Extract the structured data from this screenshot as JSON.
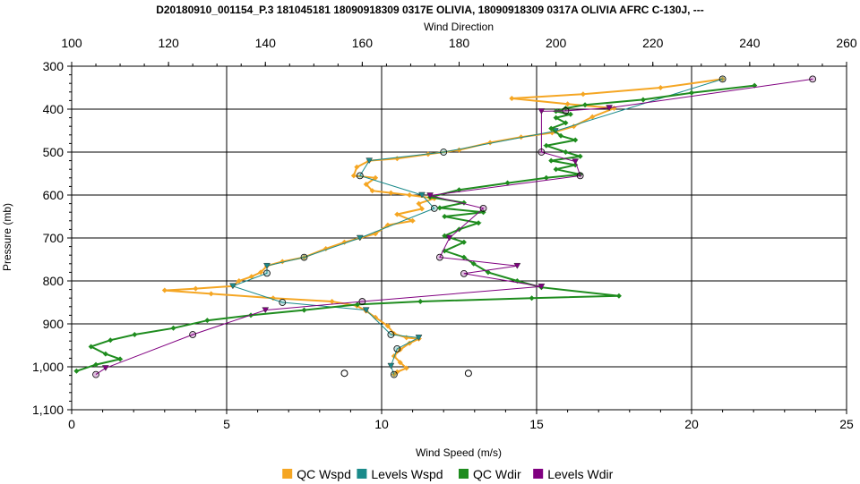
{
  "chart_data": {
    "type": "line",
    "title": "D20180910_001154_P.3 181045181 18090918309 0317E OLIVIA, 18090918309 0317A OLIVIA AFRC C-130J, ---",
    "xlabel": "Wind Speed (m/s)",
    "x2label": "Wind Direction",
    "ylabel": "Pressure (mb)",
    "xlim": [
      0,
      25
    ],
    "x2lim": [
      100,
      260
    ],
    "ylim": [
      1100,
      300
    ],
    "y_inverted": true,
    "grid": true,
    "legend_position": "bottom",
    "x_ticks": [
      "0",
      "5",
      "10",
      "15",
      "20",
      "25"
    ],
    "x2_ticks": [
      "100",
      "120",
      "140",
      "160",
      "180",
      "200",
      "220",
      "240",
      "260"
    ],
    "y_ticks": [
      "300",
      "400",
      "500",
      "600",
      "700",
      "800",
      "900",
      "1,000",
      "1,100"
    ],
    "series": [
      {
        "name": "QC Wspd",
        "axis": "bottom",
        "color": "#f5a623",
        "marker": "diamond",
        "points": [
          [
            21,
            330
          ],
          [
            19,
            350
          ],
          [
            16.5,
            365
          ],
          [
            14.2,
            375
          ],
          [
            16,
            388
          ],
          [
            17.5,
            398
          ],
          [
            16.8,
            418
          ],
          [
            16.2,
            440
          ],
          [
            15.5,
            455
          ],
          [
            14.5,
            465
          ],
          [
            13.5,
            478
          ],
          [
            12.5,
            495
          ],
          [
            11.5,
            505
          ],
          [
            10.5,
            515
          ],
          [
            9.6,
            520
          ],
          [
            9.2,
            535
          ],
          [
            9.1,
            555
          ],
          [
            9.8,
            560
          ],
          [
            9.5,
            575
          ],
          [
            9.7,
            590
          ],
          [
            10.3,
            595
          ],
          [
            10.9,
            600
          ],
          [
            11.7,
            608
          ],
          [
            11.2,
            620
          ],
          [
            11.3,
            632
          ],
          [
            10.5,
            645
          ],
          [
            11,
            660
          ],
          [
            10.2,
            670
          ],
          [
            9.8,
            690
          ],
          [
            9.3,
            700
          ],
          [
            8.8,
            710
          ],
          [
            8.2,
            725
          ],
          [
            7.5,
            745
          ],
          [
            6.8,
            755
          ],
          [
            6.3,
            765
          ],
          [
            6.1,
            780
          ],
          [
            5.8,
            790
          ],
          [
            5.4,
            800
          ],
          [
            5.2,
            812
          ],
          [
            4,
            818
          ],
          [
            3,
            822
          ],
          [
            4.5,
            830
          ],
          [
            6.5,
            840
          ],
          [
            8.4,
            848
          ],
          [
            9.2,
            858
          ],
          [
            9.5,
            870
          ],
          [
            9.8,
            885
          ],
          [
            10.2,
            905
          ],
          [
            10.4,
            923
          ],
          [
            10.8,
            932
          ],
          [
            11.2,
            935
          ],
          [
            10.9,
            945
          ],
          [
            10.6,
            960
          ],
          [
            10.4,
            975
          ],
          [
            10.6,
            990
          ],
          [
            10.8,
            1003
          ],
          [
            10.5,
            1012
          ],
          [
            10.4,
            1018
          ]
        ]
      },
      {
        "name": "Levels Wspd",
        "axis": "bottom",
        "color": "#1a8a8a",
        "points": [
          [
            21,
            330
          ],
          [
            15.6,
            451
          ],
          [
            12,
            500
          ],
          [
            9.6,
            520
          ],
          [
            9.3,
            555
          ],
          [
            11.3,
            600
          ],
          [
            11.7,
            631
          ],
          [
            9.3,
            700
          ],
          [
            7.5,
            745
          ],
          [
            6.3,
            765
          ],
          [
            6.3,
            782
          ],
          [
            5.2,
            812
          ],
          [
            6.8,
            850
          ],
          [
            9.5,
            868
          ],
          [
            10.3,
            925
          ],
          [
            11.2,
            932
          ],
          [
            10.5,
            958
          ],
          [
            10.3,
            998
          ],
          [
            10.4,
            1018
          ]
        ]
      },
      {
        "name": "QC Wdir",
        "axis": "top",
        "color": "#1e8c1e",
        "marker": "diamond",
        "points": [
          [
            241,
            345
          ],
          [
            228,
            362
          ],
          [
            218,
            378
          ],
          [
            206,
            390
          ],
          [
            202,
            398
          ],
          [
            200,
            405
          ],
          [
            203,
            412
          ],
          [
            200,
            420
          ],
          [
            202,
            432
          ],
          [
            199,
            445
          ],
          [
            201,
            462
          ],
          [
            204,
            472
          ],
          [
            198,
            485
          ],
          [
            202,
            500
          ],
          [
            205,
            510
          ],
          [
            199,
            520
          ],
          [
            204,
            530
          ],
          [
            200,
            540
          ],
          [
            205,
            552
          ],
          [
            198,
            560
          ],
          [
            190,
            572
          ],
          [
            180,
            588
          ],
          [
            174,
            605
          ],
          [
            181,
            618
          ],
          [
            176,
            630
          ],
          [
            185,
            640
          ],
          [
            177,
            650
          ],
          [
            184,
            665
          ],
          [
            180,
            680
          ],
          [
            177,
            695
          ],
          [
            181,
            710
          ],
          [
            177,
            730
          ],
          [
            181,
            745
          ],
          [
            183,
            760
          ],
          [
            186,
            780
          ],
          [
            192,
            800
          ],
          [
            197,
            815
          ],
          [
            213,
            835
          ],
          [
            195,
            840
          ],
          [
            172,
            848
          ],
          [
            159,
            855
          ],
          [
            148,
            868
          ],
          [
            137,
            880
          ],
          [
            128,
            892
          ],
          [
            121,
            910
          ],
          [
            113,
            925
          ],
          [
            108,
            938
          ],
          [
            104,
            953
          ],
          [
            107,
            970
          ],
          [
            110,
            982
          ],
          [
            105,
            995
          ],
          [
            101,
            1010
          ]
        ]
      },
      {
        "name": "Levels Wdir",
        "axis": "top",
        "color": "#800080",
        "points": [
          [
            253,
            330
          ],
          [
            211,
            397
          ],
          [
            202,
            404
          ],
          [
            197,
            405
          ],
          [
            197,
            500
          ],
          [
            204,
            522
          ],
          [
            205,
            555
          ],
          [
            174,
            601
          ],
          [
            185,
            631
          ],
          [
            178,
            700
          ],
          [
            176,
            745
          ],
          [
            192,
            765
          ],
          [
            181,
            783
          ],
          [
            197,
            813
          ],
          [
            160,
            848
          ],
          [
            140,
            868
          ],
          [
            125,
            925
          ],
          [
            107,
            1003
          ],
          [
            105,
            1018
          ]
        ]
      },
      {
        "name": "",
        "axis": "bottom",
        "color": "#000000",
        "marker": "circle",
        "points": [
          [
            8.8,
            1015
          ],
          [
            12.8,
            1015
          ]
        ]
      }
    ]
  }
}
